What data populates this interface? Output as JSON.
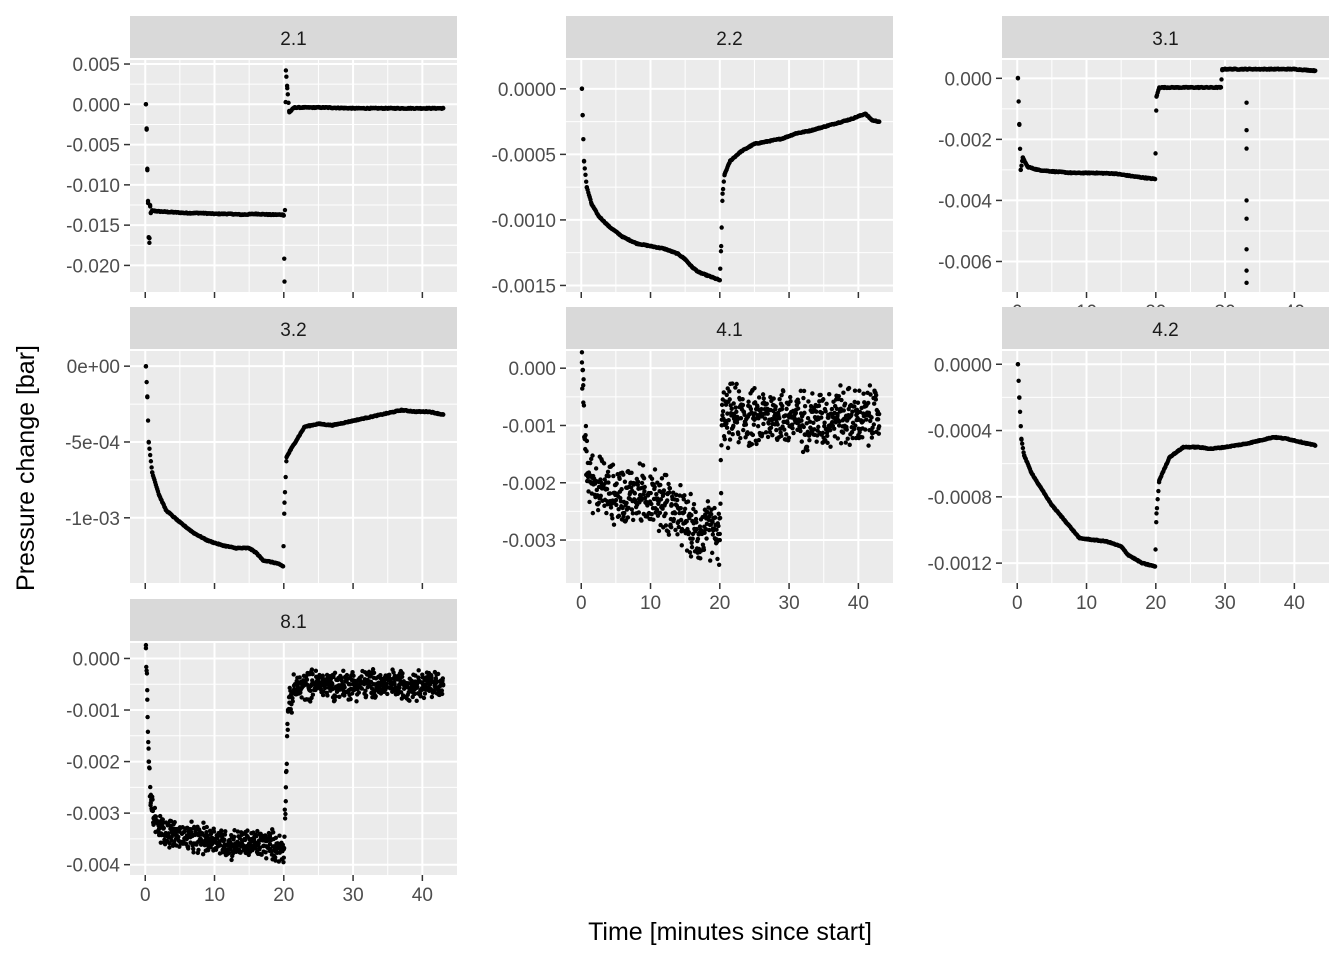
{
  "chart_data": {
    "type": "scatter",
    "xlabel": "Time [minutes since start]",
    "ylabel": "Pressure change [bar]",
    "colors": {
      "panel_background": "#EBEBEB",
      "strip_background": "#D9D9D9",
      "grid": "#FFFFFF",
      "points": "#000000"
    },
    "x_ticks": [
      "0",
      "10",
      "20",
      "30",
      "40"
    ],
    "x_tick_values": [
      0,
      10,
      20,
      30,
      40
    ],
    "xlim": [
      -2.2,
      45
    ],
    "panels": [
      {
        "name": "2.1",
        "ylim": [
          -0.0233,
          0.0055
        ],
        "y_tick_values": [
          0.005,
          0.0,
          -0.005,
          -0.01,
          -0.015,
          -0.02
        ],
        "y_tick_labels": [
          "0.005",
          "0.000",
          "-0.005",
          "-0.010",
          "-0.015",
          "-0.020"
        ],
        "points": [
          [
            0.1,
            0.0
          ],
          [
            0.2,
            -0.003
          ],
          [
            0.3,
            -0.008
          ],
          [
            0.4,
            -0.012
          ],
          [
            0.5,
            -0.0165
          ],
          [
            0.6,
            -0.0172
          ],
          [
            0.7,
            -0.0125
          ],
          [
            0.8,
            -0.0135
          ],
          [
            1.0,
            -0.0132
          ],
          [
            2,
            -0.0133
          ],
          [
            4,
            -0.0134
          ],
          [
            6,
            -0.0135
          ],
          [
            8,
            -0.0135
          ],
          [
            10,
            -0.0136
          ],
          [
            12,
            -0.0136
          ],
          [
            14,
            -0.0137
          ],
          [
            16,
            -0.0136
          ],
          [
            18,
            -0.0137
          ],
          [
            19.9,
            -0.0137
          ],
          [
            20.0,
            -0.0138
          ],
          [
            20.1,
            -0.022
          ],
          [
            20.3,
            0.0042
          ],
          [
            20.5,
            0.002
          ],
          [
            20.8,
            -0.001
          ],
          [
            21.5,
            -0.0004
          ],
          [
            23,
            -0.0004
          ],
          [
            26,
            -0.0004
          ],
          [
            30,
            -0.0005
          ],
          [
            34,
            -0.0005
          ],
          [
            38,
            -0.0005
          ],
          [
            43,
            -0.0005
          ]
        ]
      },
      {
        "name": "2.2",
        "ylim": [
          -0.00155,
          0.00022
        ],
        "y_tick_values": [
          0.0,
          -0.0005,
          -0.001,
          -0.0015
        ],
        "y_tick_labels": [
          "0.0000",
          "-0.0005",
          "-0.0010",
          "-0.0015"
        ],
        "points": [
          [
            0.1,
            0.0
          ],
          [
            0.2,
            -0.0002
          ],
          [
            0.4,
            -0.00055
          ],
          [
            0.8,
            -0.00075
          ],
          [
            1.5,
            -0.00088
          ],
          [
            2.5,
            -0.00097
          ],
          [
            4,
            -0.00105
          ],
          [
            6,
            -0.00113
          ],
          [
            8,
            -0.00118
          ],
          [
            10,
            -0.0012
          ],
          [
            12,
            -0.00122
          ],
          [
            14,
            -0.00126
          ],
          [
            15,
            -0.0013
          ],
          [
            16,
            -0.00136
          ],
          [
            17,
            -0.0014
          ],
          [
            18,
            -0.00142
          ],
          [
            19.5,
            -0.00145
          ],
          [
            20.0,
            -0.00146
          ],
          [
            20.2,
            -0.0012
          ],
          [
            20.4,
            -0.0008
          ],
          [
            20.7,
            -0.00065
          ],
          [
            21.5,
            -0.00055
          ],
          [
            23,
            -0.00048
          ],
          [
            25,
            -0.00042
          ],
          [
            27,
            -0.0004
          ],
          [
            29,
            -0.00038
          ],
          [
            31,
            -0.00034
          ],
          [
            33,
            -0.00032
          ],
          [
            35,
            -0.00029
          ],
          [
            37,
            -0.00026
          ],
          [
            39,
            -0.00023
          ],
          [
            41,
            -0.00019
          ],
          [
            42,
            -0.00024
          ],
          [
            43,
            -0.00025
          ]
        ]
      },
      {
        "name": "3.1",
        "ylim": [
          -0.007,
          0.0006
        ],
        "y_tick_values": [
          0.0,
          -0.002,
          -0.004,
          -0.006
        ],
        "y_tick_labels": [
          "0.000",
          "-0.002",
          "-0.004",
          "-0.006"
        ],
        "points": [
          [
            0.1,
            0.0
          ],
          [
            0.3,
            -0.0015
          ],
          [
            0.5,
            -0.003
          ],
          [
            0.8,
            -0.0026
          ],
          [
            1.5,
            -0.0029
          ],
          [
            3,
            -0.003
          ],
          [
            5,
            -0.00305
          ],
          [
            8,
            -0.0031
          ],
          [
            11,
            -0.0031
          ],
          [
            14,
            -0.00312
          ],
          [
            17,
            -0.00322
          ],
          [
            19.9,
            -0.0033
          ],
          [
            20.1,
            -0.0006
          ],
          [
            20.5,
            -0.0003
          ],
          [
            21,
            -0.0003
          ],
          [
            24,
            -0.0003
          ],
          [
            27,
            -0.0003
          ],
          [
            29.4,
            -0.0003
          ],
          [
            29.6,
            0.0003
          ],
          [
            31,
            0.0003
          ],
          [
            33,
            0.0003
          ],
          [
            33.1,
            -0.0008
          ],
          [
            33.1,
            -0.0017
          ],
          [
            33.1,
            -0.0023
          ],
          [
            33.1,
            -0.004
          ],
          [
            33.1,
            -0.0046
          ],
          [
            33.1,
            -0.0056
          ],
          [
            33.1,
            -0.0063
          ],
          [
            33.1,
            -0.0067
          ],
          [
            36,
            0.0003
          ],
          [
            40,
            0.0003
          ],
          [
            43,
            0.00025
          ]
        ]
      },
      {
        "name": "3.2",
        "ylim": [
          -0.00143,
          0.0001
        ],
        "y_tick_values": [
          0.0,
          -0.0005,
          -0.001
        ],
        "y_tick_labels": [
          "0e+00",
          "-5e-04",
          "-1e-03"
        ],
        "points": [
          [
            0.1,
            0.0
          ],
          [
            0.3,
            -0.0002
          ],
          [
            0.5,
            -0.0005
          ],
          [
            1,
            -0.0007
          ],
          [
            2,
            -0.00085
          ],
          [
            3,
            -0.00095
          ],
          [
            5,
            -0.00103
          ],
          [
            7,
            -0.0011
          ],
          [
            9,
            -0.00115
          ],
          [
            11,
            -0.00118
          ],
          [
            13,
            -0.0012
          ],
          [
            15,
            -0.0012
          ],
          [
            16,
            -0.00123
          ],
          [
            17,
            -0.00128
          ],
          [
            19,
            -0.0013
          ],
          [
            19.9,
            -0.00132
          ],
          [
            20.1,
            -0.0009
          ],
          [
            20.4,
            -0.0006
          ],
          [
            21,
            -0.00055
          ],
          [
            23,
            -0.0004
          ],
          [
            25,
            -0.00038
          ],
          [
            27,
            -0.00039
          ],
          [
            29,
            -0.00037
          ],
          [
            31,
            -0.00035
          ],
          [
            33,
            -0.00033
          ],
          [
            35,
            -0.00031
          ],
          [
            37,
            -0.00029
          ],
          [
            39,
            -0.0003
          ],
          [
            41,
            -0.0003
          ],
          [
            43,
            -0.00032
          ]
        ]
      },
      {
        "name": "4.1",
        "ylim": [
          -0.00375,
          0.0003
        ],
        "y_tick_values": [
          0.0,
          -0.001,
          -0.002,
          -0.003
        ],
        "y_tick_labels": [
          "0.000",
          "-0.001",
          "-0.002",
          "-0.003"
        ],
        "points": [
          [
            0.1,
            0.0001
          ],
          [
            0.3,
            -0.0006
          ],
          [
            0.5,
            -0.0012
          ],
          [
            1,
            -0.0019
          ],
          [
            3,
            -0.0021
          ],
          [
            5,
            -0.0022
          ],
          [
            7,
            -0.0022
          ],
          [
            9,
            -0.0022
          ],
          [
            11,
            -0.0023
          ],
          [
            13,
            -0.0024
          ],
          [
            15,
            -0.0027
          ],
          [
            17,
            -0.0029
          ],
          [
            19,
            -0.0028
          ],
          [
            20,
            -0.003
          ],
          [
            20.3,
            -0.0009
          ],
          [
            22,
            -0.0008
          ],
          [
            25,
            -0.0009
          ],
          [
            28,
            -0.0008
          ],
          [
            31,
            -0.0009
          ],
          [
            34,
            -0.0009
          ],
          [
            37,
            -0.0008
          ],
          [
            40,
            -0.0009
          ],
          [
            43,
            -0.0008
          ]
        ],
        "noise": 0.00045
      },
      {
        "name": "4.2",
        "ylim": [
          -0.00132,
          8e-05
        ],
        "y_tick_values": [
          0.0,
          -0.0004,
          -0.0008,
          -0.0012
        ],
        "y_tick_labels": [
          "0.0000",
          "-0.0004",
          "-0.0008",
          "-0.0012"
        ],
        "points": [
          [
            0.1,
            0.0
          ],
          [
            0.3,
            -0.0002
          ],
          [
            0.6,
            -0.00045
          ],
          [
            1,
            -0.00055
          ],
          [
            2,
            -0.00065
          ],
          [
            3,
            -0.00072
          ],
          [
            5,
            -0.00085
          ],
          [
            7,
            -0.00095
          ],
          [
            9,
            -0.00105
          ],
          [
            11,
            -0.00106
          ],
          [
            13,
            -0.00107
          ],
          [
            15,
            -0.0011
          ],
          [
            16,
            -0.00115
          ],
          [
            18,
            -0.0012
          ],
          [
            19.9,
            -0.00122
          ],
          [
            20.1,
            -0.0009
          ],
          [
            20.5,
            -0.0007
          ],
          [
            22,
            -0.00056
          ],
          [
            24,
            -0.0005
          ],
          [
            26,
            -0.0005
          ],
          [
            28,
            -0.00051
          ],
          [
            30,
            -0.0005
          ],
          [
            33,
            -0.00048
          ],
          [
            35,
            -0.00046
          ],
          [
            37,
            -0.00044
          ],
          [
            39,
            -0.00045
          ],
          [
            41,
            -0.00047
          ],
          [
            43,
            -0.00049
          ]
        ]
      },
      {
        "name": "8.1",
        "ylim": [
          -0.0042,
          0.0003
        ],
        "y_tick_values": [
          0.0,
          -0.001,
          -0.002,
          -0.003,
          -0.004
        ],
        "y_tick_labels": [
          "0.000",
          "-0.001",
          "-0.002",
          "-0.003",
          "-0.004"
        ],
        "points": [
          [
            0.1,
            0.0002
          ],
          [
            0.3,
            -0.0008
          ],
          [
            0.5,
            -0.002
          ],
          [
            0.8,
            -0.0028
          ],
          [
            1.2,
            -0.0031
          ],
          [
            2,
            -0.0033
          ],
          [
            4,
            -0.0034
          ],
          [
            6,
            -0.0035
          ],
          [
            8,
            -0.0035
          ],
          [
            10,
            -0.0035
          ],
          [
            12,
            -0.0036
          ],
          [
            14,
            -0.0036
          ],
          [
            16,
            -0.0036
          ],
          [
            18,
            -0.0036
          ],
          [
            20,
            -0.0037
          ],
          [
            20.3,
            -0.0025
          ],
          [
            20.6,
            -0.001
          ],
          [
            21.5,
            -0.0006
          ],
          [
            24,
            -0.0005
          ],
          [
            27,
            -0.0005
          ],
          [
            30,
            -0.0005
          ],
          [
            33,
            -0.0005
          ],
          [
            36,
            -0.0005
          ],
          [
            39,
            -0.0005
          ],
          [
            43,
            -0.0005
          ]
        ],
        "noise": 0.00025
      }
    ]
  }
}
